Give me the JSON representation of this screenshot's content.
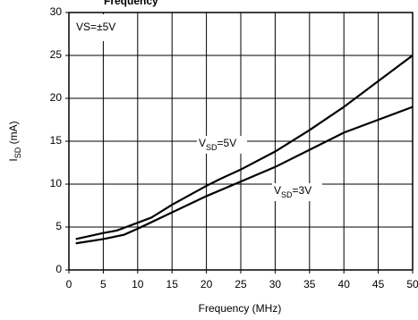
{
  "chart_data": {
    "type": "line",
    "title": "Frequency",
    "x_label": "Frequency (MHz)",
    "y_label": [
      "I",
      "SD",
      " (mA)"
    ],
    "annotation": "VS=±5V",
    "xlim": [
      0,
      50
    ],
    "xticks": [
      0,
      5,
      10,
      15,
      20,
      25,
      30,
      35,
      40,
      45,
      50
    ],
    "ylim": [
      0,
      30
    ],
    "yticks": [
      0,
      5,
      10,
      15,
      20,
      25,
      30
    ],
    "grid": true,
    "series": [
      {
        "label": [
          "V",
          "SD",
          "=5V"
        ],
        "color": "#000000",
        "x": [
          1,
          5,
          7,
          10,
          12,
          15,
          20,
          22,
          25,
          30,
          35,
          40,
          45,
          50
        ],
        "values": [
          3.6,
          4.3,
          4.6,
          5.5,
          6.1,
          7.6,
          9.8,
          10.6,
          11.7,
          13.8,
          16.3,
          19.0,
          22.0,
          25.0
        ]
      },
      {
        "label": [
          "V",
          "SD",
          "=3V"
        ],
        "color": "#000000",
        "x": [
          1,
          5,
          8,
          10,
          15,
          20,
          25,
          30,
          35,
          40,
          45,
          50
        ],
        "values": [
          3.1,
          3.6,
          4.1,
          4.8,
          6.7,
          8.6,
          10.3,
          12.0,
          14.0,
          16.0,
          17.5,
          19.0
        ]
      }
    ]
  }
}
